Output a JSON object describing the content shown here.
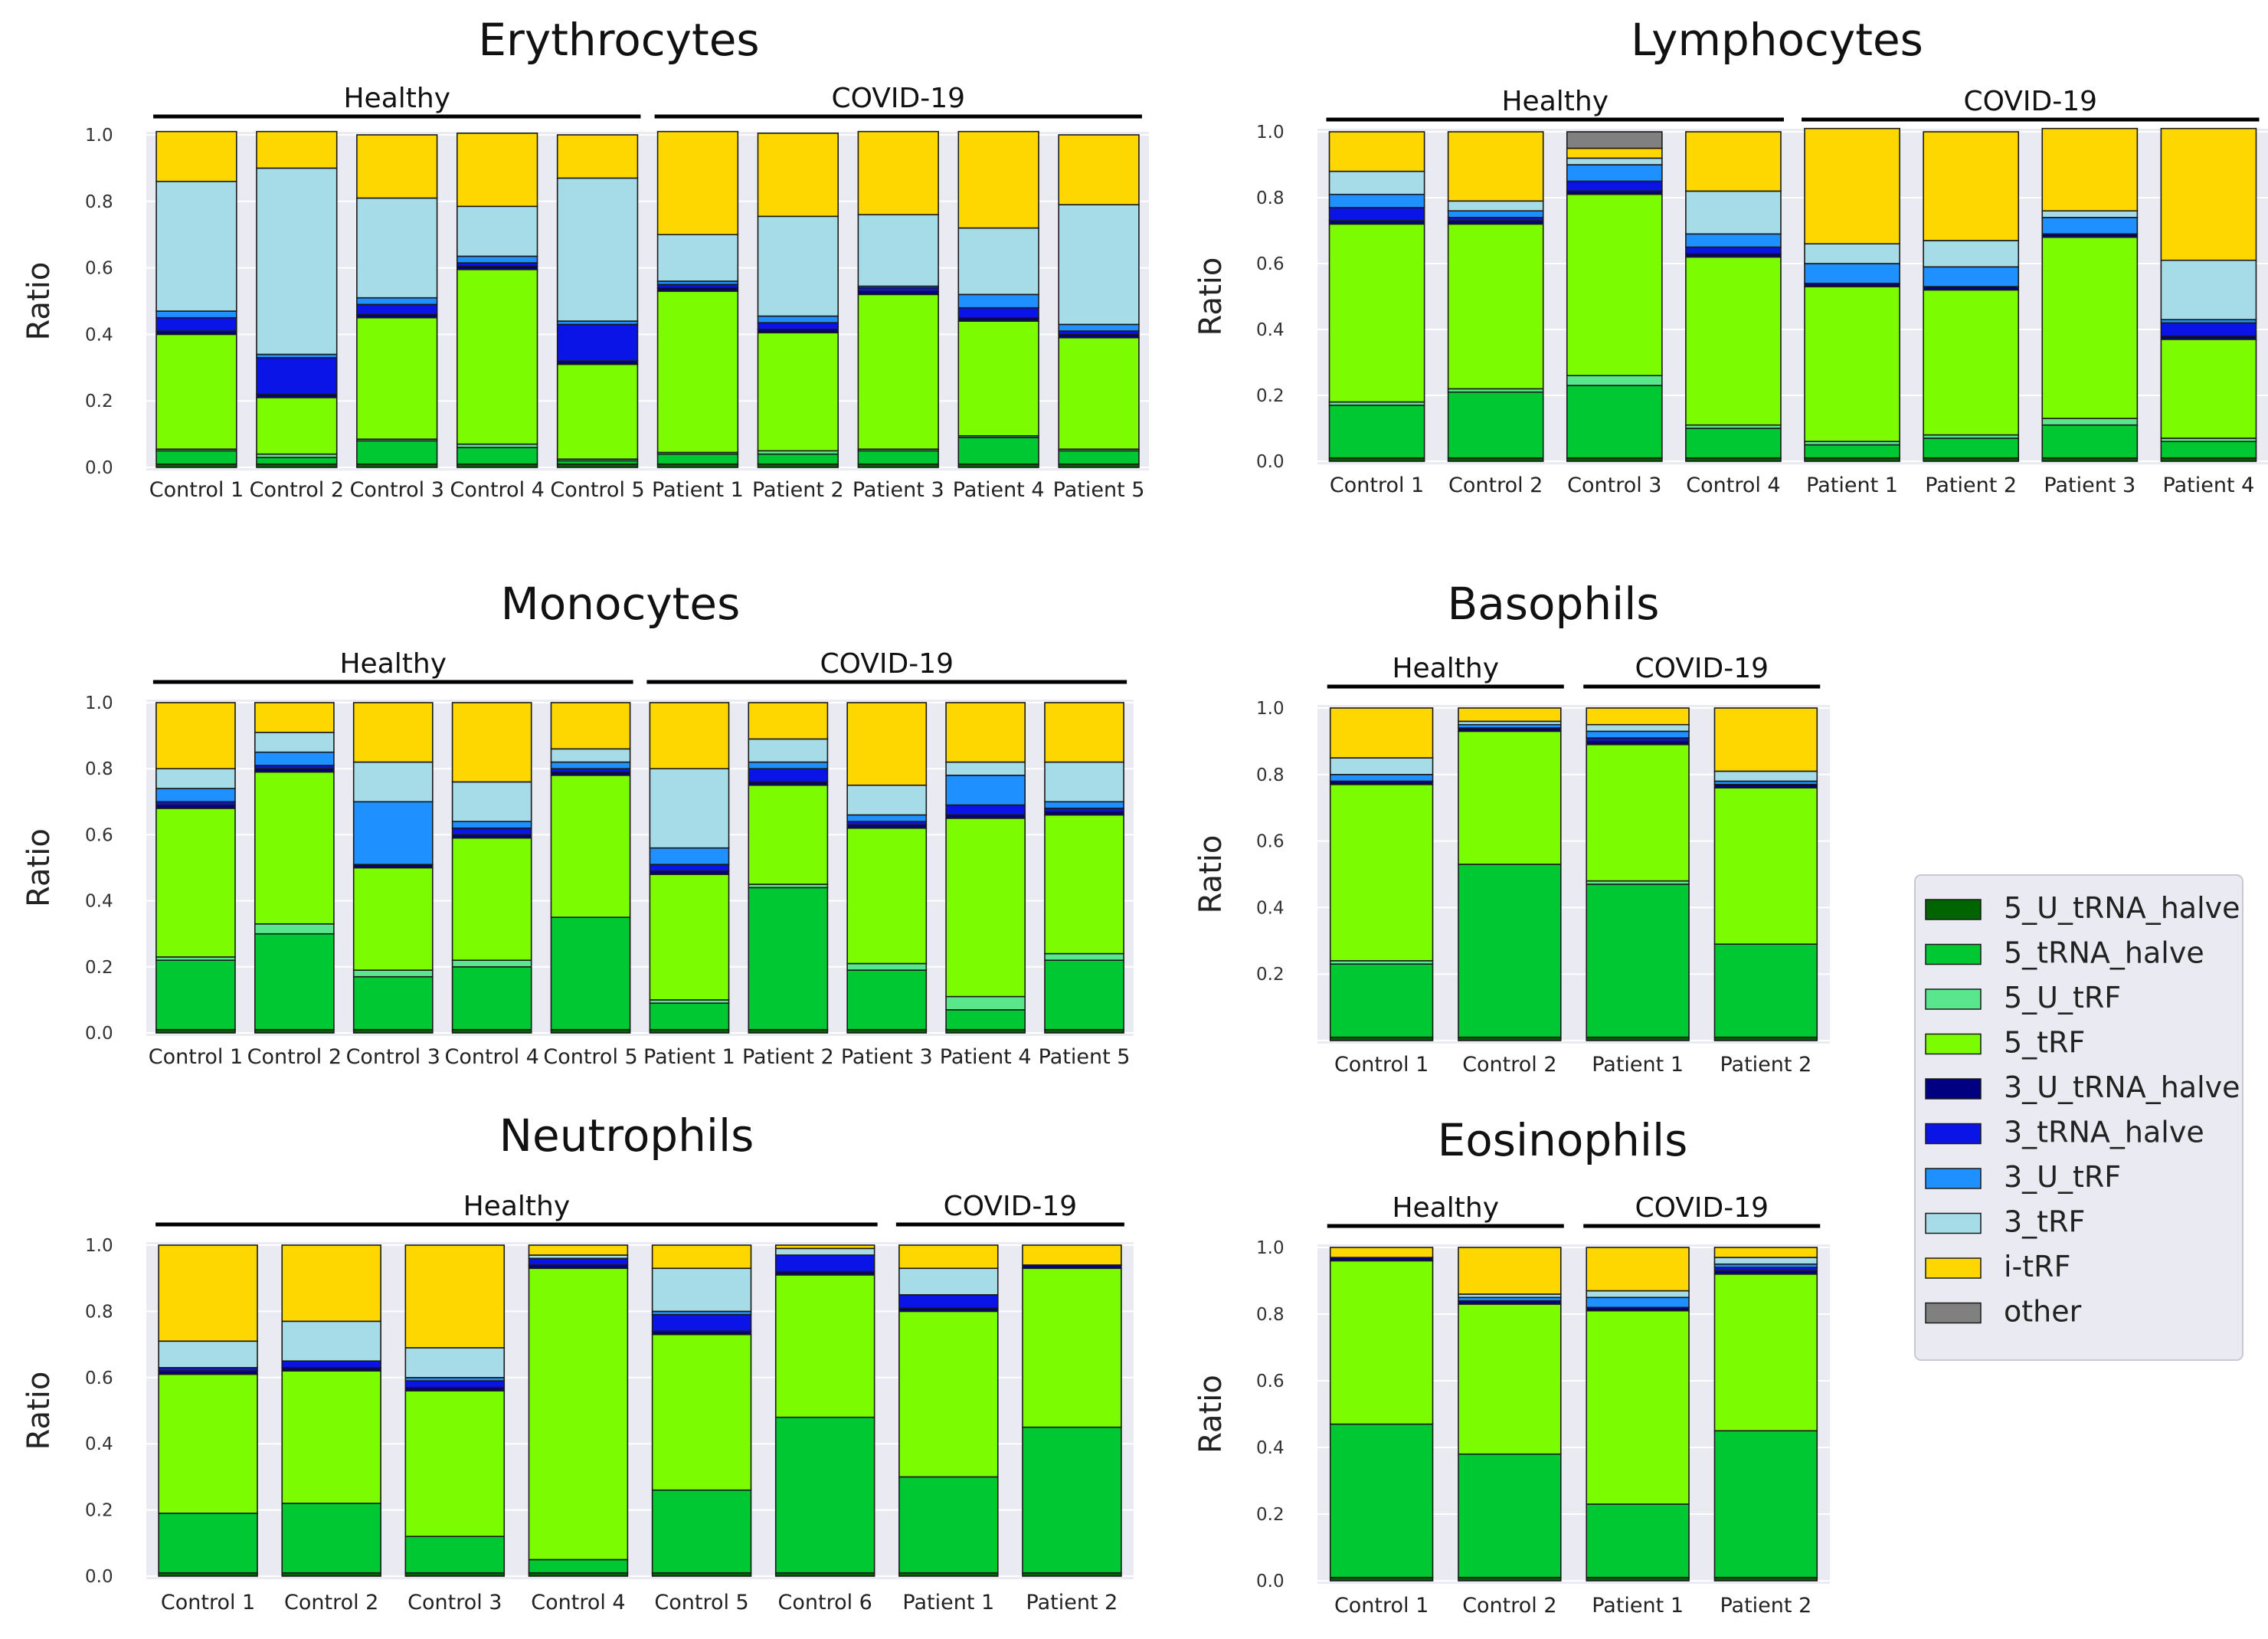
{
  "legend": {
    "items": [
      {
        "name": "5_U_tRNA_halve",
        "color": "#006400"
      },
      {
        "name": "5_tRNA_halve",
        "color": "#00c832"
      },
      {
        "name": "5_U_tRF",
        "color": "#5ae68c"
      },
      {
        "name": "5_tRF",
        "color": "#7cfc00"
      },
      {
        "name": "3_U_tRNA_halve",
        "color": "#000080"
      },
      {
        "name": "3_tRNA_halve",
        "color": "#0a14e6"
      },
      {
        "name": "3_U_tRF",
        "color": "#1e90ff"
      },
      {
        "name": "3_tRF",
        "color": "#a6dbe8"
      },
      {
        "name": "i-tRF",
        "color": "#ffd700"
      },
      {
        "name": "other",
        "color": "#808080"
      }
    ]
  },
  "chart_data": [
    {
      "type": "bar",
      "stacked": true,
      "title": "Erythrocytes",
      "ylabel": "Ratio",
      "ylim": [
        0,
        1
      ],
      "yticks": [
        "0.0",
        "0.2",
        "0.4",
        "0.6",
        "0.8",
        "1.0"
      ],
      "groups": [
        {
          "label": "Healthy",
          "from": 0,
          "to": 4
        },
        {
          "label": "COVID-19",
          "from": 5,
          "to": 9
        }
      ],
      "categories": [
        "Control 1",
        "Control 2",
        "Control 3",
        "Control 4",
        "Control 5",
        "Patient 1",
        "Patient 2",
        "Patient 3",
        "Patient 4",
        "Patient 5"
      ],
      "series": [
        {
          "name": "5_U_tRNA_halve",
          "values": [
            0.01,
            0.01,
            0.01,
            0.01,
            0.01,
            0.01,
            0.01,
            0.01,
            0.01,
            0.01
          ]
        },
        {
          "name": "5_tRNA_halve",
          "values": [
            0.04,
            0.02,
            0.07,
            0.05,
            0.01,
            0.03,
            0.03,
            0.04,
            0.08,
            0.04
          ]
        },
        {
          "name": "5_U_tRF",
          "values": [
            0.005,
            0.01,
            0.005,
            0.01,
            0.005,
            0.005,
            0.01,
            0.005,
            0.005,
            0.005
          ]
        },
        {
          "name": "5_tRF",
          "values": [
            0.345,
            0.17,
            0.365,
            0.525,
            0.285,
            0.485,
            0.355,
            0.465,
            0.345,
            0.335
          ]
        },
        {
          "name": "3_U_tRNA_halve",
          "values": [
            0.01,
            0.01,
            0.01,
            0.01,
            0.01,
            0.01,
            0.01,
            0.01,
            0.01,
            0.01
          ]
        },
        {
          "name": "3_tRNA_halve",
          "values": [
            0.04,
            0.11,
            0.03,
            0.01,
            0.11,
            0.01,
            0.02,
            0.01,
            0.03,
            0.01
          ]
        },
        {
          "name": "3_U_tRF",
          "values": [
            0.02,
            0.01,
            0.02,
            0.02,
            0.01,
            0.01,
            0.02,
            0.005,
            0.04,
            0.02
          ]
        },
        {
          "name": "3_tRF",
          "values": [
            0.39,
            0.56,
            0.3,
            0.15,
            0.43,
            0.14,
            0.3,
            0.215,
            0.2,
            0.36
          ]
        },
        {
          "name": "i-tRF",
          "values": [
            0.15,
            0.11,
            0.19,
            0.22,
            0.13,
            0.31,
            0.25,
            0.25,
            0.29,
            0.21
          ]
        },
        {
          "name": "other",
          "values": [
            0,
            0,
            0,
            0,
            0,
            0,
            0,
            0,
            0,
            0
          ]
        }
      ]
    },
    {
      "type": "bar",
      "stacked": true,
      "title": "Lymphocytes",
      "ylabel": "Ratio",
      "ylim": [
        0,
        1
      ],
      "yticks": [
        "0.0",
        "0.2",
        "0.4",
        "0.6",
        "0.8",
        "1.0"
      ],
      "groups": [
        {
          "label": "Healthy",
          "from": 0,
          "to": 3
        },
        {
          "label": "COVID-19",
          "from": 4,
          "to": 7
        }
      ],
      "categories": [
        "Control 1",
        "Control 2",
        "Control 3",
        "Control 4",
        "Patient 1",
        "Patient 2",
        "Patient 3",
        "Patient 4"
      ],
      "series": [
        {
          "name": "5_U_tRNA_halve",
          "values": [
            0.01,
            0.01,
            0.01,
            0.01,
            0.01,
            0.01,
            0.01,
            0.01
          ]
        },
        {
          "name": "5_tRNA_halve",
          "values": [
            0.16,
            0.2,
            0.22,
            0.09,
            0.04,
            0.06,
            0.1,
            0.05
          ]
        },
        {
          "name": "5_U_tRF",
          "values": [
            0.01,
            0.01,
            0.03,
            0.01,
            0.01,
            0.01,
            0.02,
            0.01
          ]
        },
        {
          "name": "5_tRF",
          "values": [
            0.54,
            0.5,
            0.55,
            0.51,
            0.47,
            0.44,
            0.55,
            0.3
          ]
        },
        {
          "name": "3_U_tRNA_halve",
          "values": [
            0.01,
            0.01,
            0.01,
            0.01,
            0.01,
            0.01,
            0.01,
            0.01
          ]
        },
        {
          "name": "3_tRNA_halve",
          "values": [
            0.04,
            0.01,
            0.03,
            0.02,
            0,
            0,
            0,
            0.04
          ]
        },
        {
          "name": "3_U_tRF",
          "values": [
            0.04,
            0.02,
            0.05,
            0.04,
            0.06,
            0.06,
            0.05,
            0.01
          ]
        },
        {
          "name": "3_tRF",
          "values": [
            0.07,
            0.03,
            0.02,
            0.13,
            0.06,
            0.08,
            0.02,
            0.18
          ]
        },
        {
          "name": "i-tRF",
          "values": [
            0.12,
            0.21,
            0.03,
            0.18,
            0.35,
            0.33,
            0.25,
            0.4
          ]
        },
        {
          "name": "other",
          "values": [
            0,
            0,
            0.05,
            0,
            0,
            0,
            0,
            0
          ]
        }
      ]
    },
    {
      "type": "bar",
      "stacked": true,
      "title": "Monocytes",
      "ylabel": "Ratio",
      "ylim": [
        0,
        1
      ],
      "yticks": [
        "0.0",
        "0.2",
        "0.4",
        "0.6",
        "0.8",
        "1.0"
      ],
      "groups": [
        {
          "label": "Healthy",
          "from": 0,
          "to": 4
        },
        {
          "label": "COVID-19",
          "from": 5,
          "to": 9
        }
      ],
      "categories": [
        "Control 1",
        "Control 2",
        "Control 3",
        "Control 4",
        "Control 5",
        "Patient 1",
        "Patient 2",
        "Patient 3",
        "Patient 4",
        "Patient 5"
      ],
      "series": [
        {
          "name": "5_U_tRNA_halve",
          "values": [
            0.01,
            0.01,
            0.01,
            0.01,
            0.01,
            0.01,
            0.01,
            0.01,
            0.01,
            0.01
          ]
        },
        {
          "name": "5_tRNA_halve",
          "values": [
            0.21,
            0.29,
            0.16,
            0.19,
            0.34,
            0.08,
            0.43,
            0.18,
            0.06,
            0.21
          ]
        },
        {
          "name": "5_U_tRF",
          "values": [
            0.01,
            0.03,
            0.02,
            0.02,
            0,
            0.01,
            0.01,
            0.02,
            0.04,
            0.02
          ]
        },
        {
          "name": "5_tRF",
          "values": [
            0.45,
            0.46,
            0.31,
            0.37,
            0.43,
            0.38,
            0.3,
            0.41,
            0.54,
            0.42
          ]
        },
        {
          "name": "3_U_tRNA_halve",
          "values": [
            0.01,
            0.01,
            0.01,
            0.01,
            0.01,
            0.01,
            0.01,
            0.01,
            0.01,
            0.01
          ]
        },
        {
          "name": "3_tRNA_halve",
          "values": [
            0.01,
            0.01,
            0,
            0.02,
            0.01,
            0.02,
            0.04,
            0.01,
            0.03,
            0.01
          ]
        },
        {
          "name": "3_U_tRF",
          "values": [
            0.04,
            0.04,
            0.19,
            0.02,
            0.02,
            0.05,
            0.02,
            0.02,
            0.09,
            0.02
          ]
        },
        {
          "name": "3_tRF",
          "values": [
            0.06,
            0.06,
            0.12,
            0.12,
            0.04,
            0.24,
            0.07,
            0.09,
            0.04,
            0.12
          ]
        },
        {
          "name": "i-tRF",
          "values": [
            0.2,
            0.09,
            0.18,
            0.24,
            0.14,
            0.2,
            0.11,
            0.25,
            0.18,
            0.18
          ]
        },
        {
          "name": "other",
          "values": [
            0,
            0,
            0,
            0,
            0,
            0,
            0,
            0,
            0,
            0
          ]
        }
      ]
    },
    {
      "type": "bar",
      "stacked": true,
      "title": "Basophils",
      "ylabel": "Ratio",
      "ylim": [
        0,
        1
      ],
      "yticks": [
        "",
        "0.2",
        "0.4",
        "0.6",
        "0.8",
        "1.0"
      ],
      "groups": [
        {
          "label": "Healthy",
          "from": 0,
          "to": 1
        },
        {
          "label": "COVID-19",
          "from": 2,
          "to": 3
        }
      ],
      "categories": [
        "Control 1",
        "Control 2",
        "Patient 1",
        "Patient 2"
      ],
      "series": [
        {
          "name": "5_U_tRNA_halve",
          "values": [
            0.01,
            0.01,
            0.01,
            0.01
          ]
        },
        {
          "name": "5_tRNA_halve",
          "values": [
            0.22,
            0.52,
            0.46,
            0.28
          ]
        },
        {
          "name": "5_U_tRF",
          "values": [
            0.01,
            0,
            0.01,
            0
          ]
        },
        {
          "name": "5_tRF",
          "values": [
            0.53,
            0.4,
            0.41,
            0.47
          ]
        },
        {
          "name": "3_U_tRNA_halve",
          "values": [
            0.01,
            0.01,
            0.01,
            0.01
          ]
        },
        {
          "name": "3_tRNA_halve",
          "values": [
            0,
            0,
            0.01,
            0
          ]
        },
        {
          "name": "3_U_tRF",
          "values": [
            0.02,
            0.01,
            0.02,
            0.01
          ]
        },
        {
          "name": "3_tRF",
          "values": [
            0.05,
            0.01,
            0.02,
            0.03
          ]
        },
        {
          "name": "i-tRF",
          "values": [
            0.15,
            0.04,
            0.05,
            0.19
          ]
        },
        {
          "name": "other",
          "values": [
            0,
            0,
            0,
            0
          ]
        }
      ]
    },
    {
      "type": "bar",
      "stacked": true,
      "title": "Neutrophils",
      "ylabel": "Ratio",
      "ylim": [
        0,
        1
      ],
      "yticks": [
        "0.0",
        "0.2",
        "0.4",
        "0.6",
        "0.8",
        "1.0"
      ],
      "groups": [
        {
          "label": "Healthy",
          "from": 0,
          "to": 5
        },
        {
          "label": "COVID-19",
          "from": 6,
          "to": 7
        }
      ],
      "categories": [
        "Control 1",
        "Control 2",
        "Control 3",
        "Control 4",
        "Control 5",
        "Control 6",
        "Patient 1",
        "Patient 2"
      ],
      "series": [
        {
          "name": "5_U_tRNA_halve",
          "values": [
            0.01,
            0.01,
            0.01,
            0.01,
            0.01,
            0.01,
            0.01,
            0.01
          ]
        },
        {
          "name": "5_tRNA_halve",
          "values": [
            0.18,
            0.21,
            0.11,
            0.04,
            0.25,
            0.47,
            0.29,
            0.44
          ]
        },
        {
          "name": "5_U_tRF",
          "values": [
            0,
            0,
            0,
            0,
            0,
            0,
            0,
            0
          ]
        },
        {
          "name": "5_tRF",
          "values": [
            0.42,
            0.4,
            0.44,
            0.88,
            0.47,
            0.43,
            0.5,
            0.48
          ]
        },
        {
          "name": "3_U_tRNA_halve",
          "values": [
            0.01,
            0.01,
            0.01,
            0.01,
            0.01,
            0.01,
            0.01,
            0.01
          ]
        },
        {
          "name": "3_tRNA_halve",
          "values": [
            0.01,
            0.02,
            0.02,
            0.02,
            0.05,
            0.05,
            0.04,
            0
          ]
        },
        {
          "name": "3_U_tRF",
          "values": [
            0,
            0,
            0.01,
            0,
            0.01,
            0,
            0,
            0
          ]
        },
        {
          "name": "3_tRF",
          "values": [
            0.08,
            0.12,
            0.09,
            0.01,
            0.13,
            0.02,
            0.08,
            0
          ]
        },
        {
          "name": "i-tRF",
          "values": [
            0.29,
            0.23,
            0.31,
            0.03,
            0.07,
            0.01,
            0.07,
            0.06
          ]
        },
        {
          "name": "other",
          "values": [
            0,
            0,
            0,
            0,
            0,
            0,
            0,
            0
          ]
        }
      ]
    },
    {
      "type": "bar",
      "stacked": true,
      "title": "Eosinophils",
      "ylabel": "Ratio",
      "ylim": [
        0,
        1
      ],
      "yticks": [
        "0.0",
        "0.2",
        "0.4",
        "0.6",
        "0.8",
        "1.0"
      ],
      "groups": [
        {
          "label": "Healthy",
          "from": 0,
          "to": 1
        },
        {
          "label": "COVID-19",
          "from": 2,
          "to": 3
        }
      ],
      "categories": [
        "Control 1",
        "Control 2",
        "Patient 1",
        "Patient 2"
      ],
      "series": [
        {
          "name": "5_U_tRNA_halve",
          "values": [
            0.01,
            0.01,
            0.01,
            0.01
          ]
        },
        {
          "name": "5_tRNA_halve",
          "values": [
            0.46,
            0.37,
            0.22,
            0.44
          ]
        },
        {
          "name": "5_U_tRF",
          "values": [
            0,
            0,
            0,
            0
          ]
        },
        {
          "name": "5_tRF",
          "values": [
            0.49,
            0.45,
            0.58,
            0.47
          ]
        },
        {
          "name": "3_U_tRNA_halve",
          "values": [
            0.01,
            0.01,
            0.01,
            0.01
          ]
        },
        {
          "name": "3_tRNA_halve",
          "values": [
            0,
            0,
            0,
            0.01
          ]
        },
        {
          "name": "3_U_tRF",
          "values": [
            0,
            0.01,
            0.03,
            0.01
          ]
        },
        {
          "name": "3_tRF",
          "values": [
            0,
            0.01,
            0.02,
            0.02
          ]
        },
        {
          "name": "i-tRF",
          "values": [
            0.03,
            0.14,
            0.13,
            0.03
          ]
        },
        {
          "name": "other",
          "values": [
            0,
            0,
            0,
            0
          ]
        }
      ]
    }
  ]
}
